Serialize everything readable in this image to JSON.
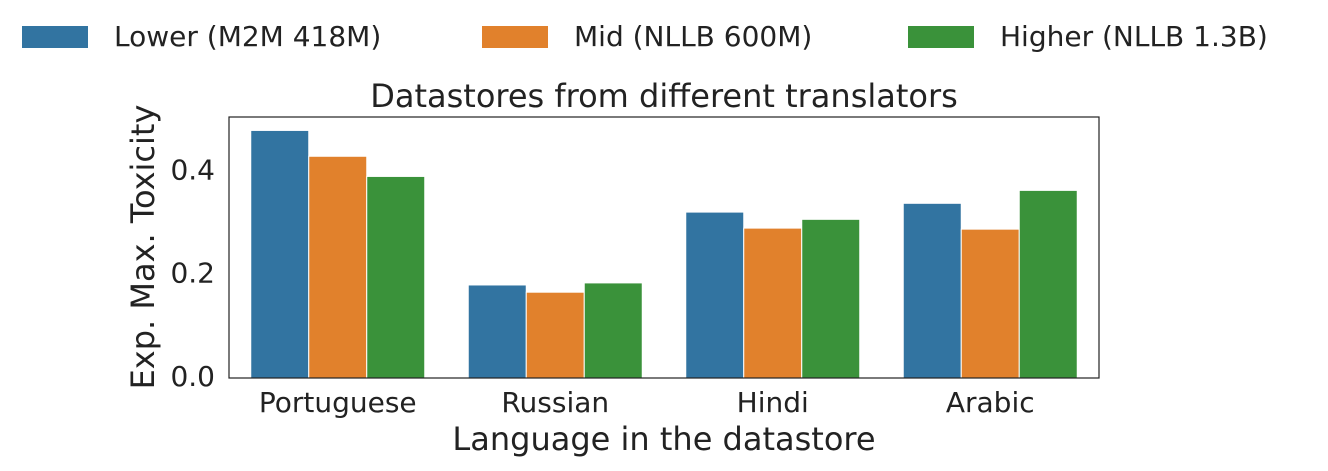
{
  "chart_data": {
    "type": "bar",
    "title": "Datastores from different translators",
    "x_label": "Language in the datastore",
    "y_label": "Exp. Max. Toxicity",
    "categories": [
      "Portuguese",
      "Russian",
      "Hindi",
      "Arabic"
    ],
    "series": [
      {
        "name": "Lower (M2M 418M)",
        "color": "#3274a1",
        "values": [
          0.479,
          0.18,
          0.321,
          0.338
        ]
      },
      {
        "name": "Mid (NLLB 600M)",
        "color": "#e1812c",
        "values": [
          0.429,
          0.166,
          0.29,
          0.288
        ]
      },
      {
        "name": "Higher (NLLB 1.3B)",
        "color": "#3a923a",
        "values": [
          0.39,
          0.184,
          0.307,
          0.363
        ]
      }
    ],
    "ylim": [
      0,
      0.505
    ],
    "yticks": [
      {
        "value": 0,
        "label": "0.0"
      },
      0.2,
      0.4
    ],
    "grid": false,
    "legend": "top"
  }
}
